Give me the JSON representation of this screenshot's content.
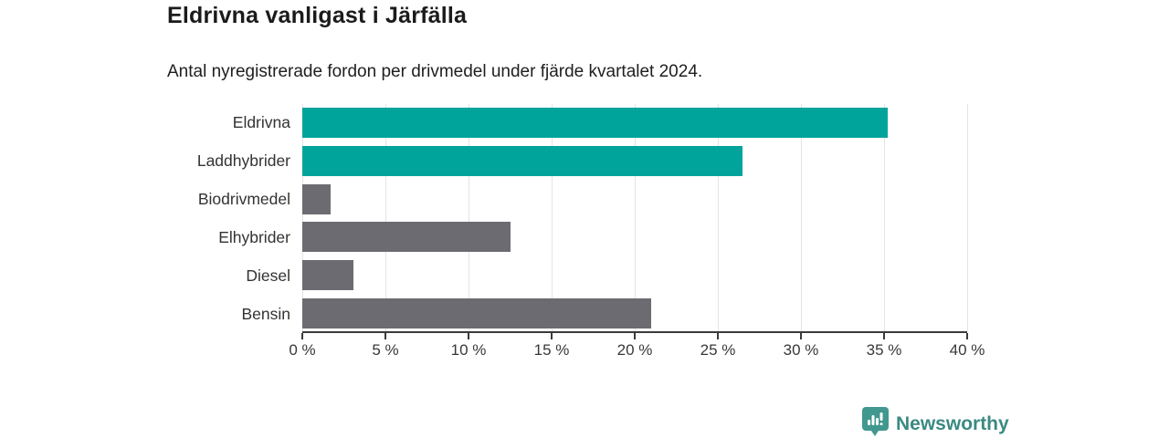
{
  "header": {
    "title": "Eldrivna vanligast i Järfälla",
    "subtitle": "Antal nyregistrerade fordon per drivmedel under fjärde kvartalet 2024."
  },
  "chart_data": {
    "type": "bar",
    "orientation": "horizontal",
    "title": "Eldrivna vanligast i Järfälla",
    "subtitle": "Antal nyregistrerade fordon per drivmedel under fjärde kvartalet 2024.",
    "categories": [
      "Eldrivna",
      "Laddhybrider",
      "Biodrivmedel",
      "Elhybrider",
      "Diesel",
      "Bensin"
    ],
    "values": [
      35.2,
      26.5,
      1.7,
      12.5,
      3.1,
      21.0
    ],
    "unit": "%",
    "bar_colors": [
      "#00a49a",
      "#00a49a",
      "#6d6b72",
      "#6d6b72",
      "#6d6b72",
      "#6d6b72"
    ],
    "accent_teal": "#00a49a",
    "neutral_gray": "#6d6b72",
    "xlabel": "",
    "ylabel": "",
    "xlim": [
      0,
      40
    ],
    "ticks": [
      {
        "value": 0,
        "label": "0 %"
      },
      {
        "value": 5,
        "label": "5 %"
      },
      {
        "value": 10,
        "label": "10 %"
      },
      {
        "value": 15,
        "label": "15 %"
      },
      {
        "value": 20,
        "label": "20 %"
      },
      {
        "value": 25,
        "label": "25 %"
      },
      {
        "value": 30,
        "label": "30 %"
      },
      {
        "value": 35,
        "label": "35 %"
      },
      {
        "value": 40,
        "label": "40 %"
      }
    ],
    "grid": "vertical-light",
    "legend": "none"
  },
  "footer": {
    "brand": "Newsworthy",
    "logo_icon": "newsworthy-bar-chart-bubble-icon",
    "brand_color": "#3a8a82",
    "icon_color": "#41988e"
  }
}
